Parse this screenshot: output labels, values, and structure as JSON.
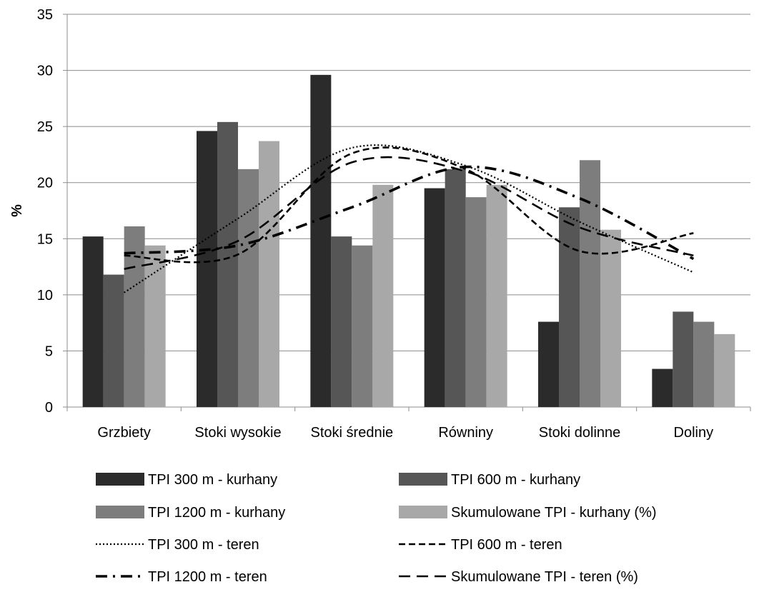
{
  "chart_data": {
    "type": "bar",
    "ylabel": "%",
    "xlabel": "",
    "ylim": [
      0,
      35
    ],
    "yticks": [
      0,
      5,
      10,
      15,
      20,
      25,
      30,
      35
    ],
    "grid": true,
    "legend_position": "bottom",
    "categories": [
      "Grzbiety",
      "Stoki wysokie",
      "Stoki średnie",
      "Równiny",
      "Stoki dolinne",
      "Doliny"
    ],
    "bar_series": [
      {
        "name": "TPI 300 m - kurhany",
        "color": "#2b2b2b",
        "values": [
          15.2,
          24.6,
          29.6,
          19.5,
          7.6,
          3.4
        ]
      },
      {
        "name": "TPI 600 m - kurhany",
        "color": "#565656",
        "values": [
          11.8,
          25.4,
          15.2,
          21.2,
          17.8,
          8.5
        ]
      },
      {
        "name": "TPI 1200 m - kurhany",
        "color": "#7d7d7d",
        "values": [
          16.1,
          21.2,
          14.4,
          18.7,
          22.0,
          7.6
        ]
      },
      {
        "name": "Skumulowane TPI - kurhany (%)",
        "color": "#a8a8a8",
        "values": [
          14.4,
          23.7,
          19.8,
          19.8,
          15.8,
          6.5
        ]
      }
    ],
    "line_series": [
      {
        "name": "TPI 300 m - teren",
        "style": "dotted",
        "values": [
          10.2,
          16.8,
          23.1,
          21.5,
          16.5,
          12.0
        ]
      },
      {
        "name": "TPI 600 m - teren",
        "style": "dashed",
        "values": [
          13.5,
          13.6,
          22.6,
          21.2,
          13.9,
          15.5
        ]
      },
      {
        "name": "TPI 1200 m - teren",
        "style": "dash-dot",
        "values": [
          13.7,
          14.4,
          17.8,
          21.4,
          18.6,
          13.2
        ]
      },
      {
        "name": "Skumulowane TPI - teren (%)",
        "style": "long-dash",
        "values": [
          12.3,
          14.8,
          21.8,
          21.0,
          16.0,
          13.5
        ]
      }
    ]
  }
}
